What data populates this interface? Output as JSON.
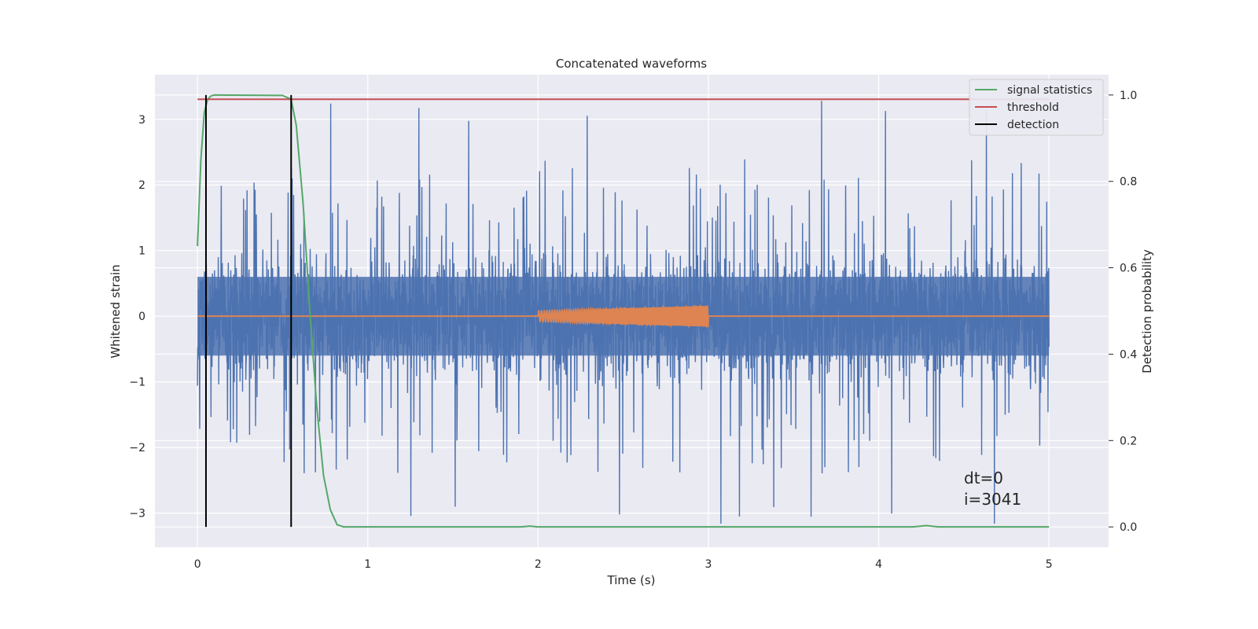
{
  "chart_data": {
    "type": "line",
    "title": "Concatenated waveforms",
    "xlabel": "Time (s)",
    "ylabel": "Whitened strain",
    "y2label": "Detection probability",
    "xlim": [
      -0.25,
      5.35
    ],
    "ylim": [
      -3.52,
      3.68
    ],
    "y2lim": [
      -0.047,
      1.047
    ],
    "xticks": [
      0,
      1,
      2,
      3,
      4,
      5
    ],
    "xtick_labels": [
      "0",
      "1",
      "2",
      "3",
      "4",
      "5"
    ],
    "yticks": [
      -3,
      -2,
      -1,
      0,
      1,
      2,
      3
    ],
    "ytick_labels": [
      "−3",
      "−2",
      "−1",
      "0",
      "1",
      "2",
      "3"
    ],
    "y2ticks": [
      0.0,
      0.2,
      0.4,
      0.6,
      0.8,
      1.0
    ],
    "y2tick_labels": [
      "0.0",
      "0.2",
      "0.4",
      "0.6",
      "0.8",
      "1.0"
    ],
    "grid": true,
    "legend_position": "top-right",
    "series": [
      {
        "kind": "noise",
        "axis": "left",
        "color": "#4c72b0",
        "x_range": [
          0,
          5
        ],
        "bulk_amplitude": 0.6,
        "spike_max": 3.3,
        "spike_min": -3.2
      },
      {
        "kind": "injected-waveform",
        "axis": "left",
        "color": "#dd8452",
        "x_range": [
          2,
          3
        ],
        "amplitude_start": 0.08,
        "amplitude_end": 0.16
      },
      {
        "name": "signal statistics",
        "axis": "right",
        "color": "#55a868",
        "x": [
          0,
          0.02,
          0.04,
          0.06,
          0.08,
          0.1,
          0.5,
          0.55,
          0.58,
          0.62,
          0.66,
          0.7,
          0.74,
          0.78,
          0.82,
          0.86,
          1.9,
          1.95,
          2.0,
          4.2,
          4.28,
          4.35,
          5.0
        ],
        "values": [
          0.65,
          0.85,
          0.96,
          0.99,
          0.998,
          1.0,
          0.999,
          0.99,
          0.93,
          0.75,
          0.5,
          0.28,
          0.12,
          0.04,
          0.005,
          0.0,
          0.0,
          0.002,
          0.0,
          0.0,
          0.003,
          0.0,
          0.0
        ]
      },
      {
        "name": "threshold",
        "axis": "right",
        "color": "#c44e52",
        "x": [
          0,
          5
        ],
        "values": [
          0.99,
          0.99
        ]
      },
      {
        "name": "detection",
        "axis": "right",
        "color": "#000000",
        "x": [
          0.05,
          0.55
        ],
        "values": [
          1.0,
          1.0
        ]
      }
    ],
    "legend": [
      "signal statistics",
      "threshold",
      "detection"
    ],
    "annotation": [
      "dt=0",
      "i=3041"
    ]
  }
}
